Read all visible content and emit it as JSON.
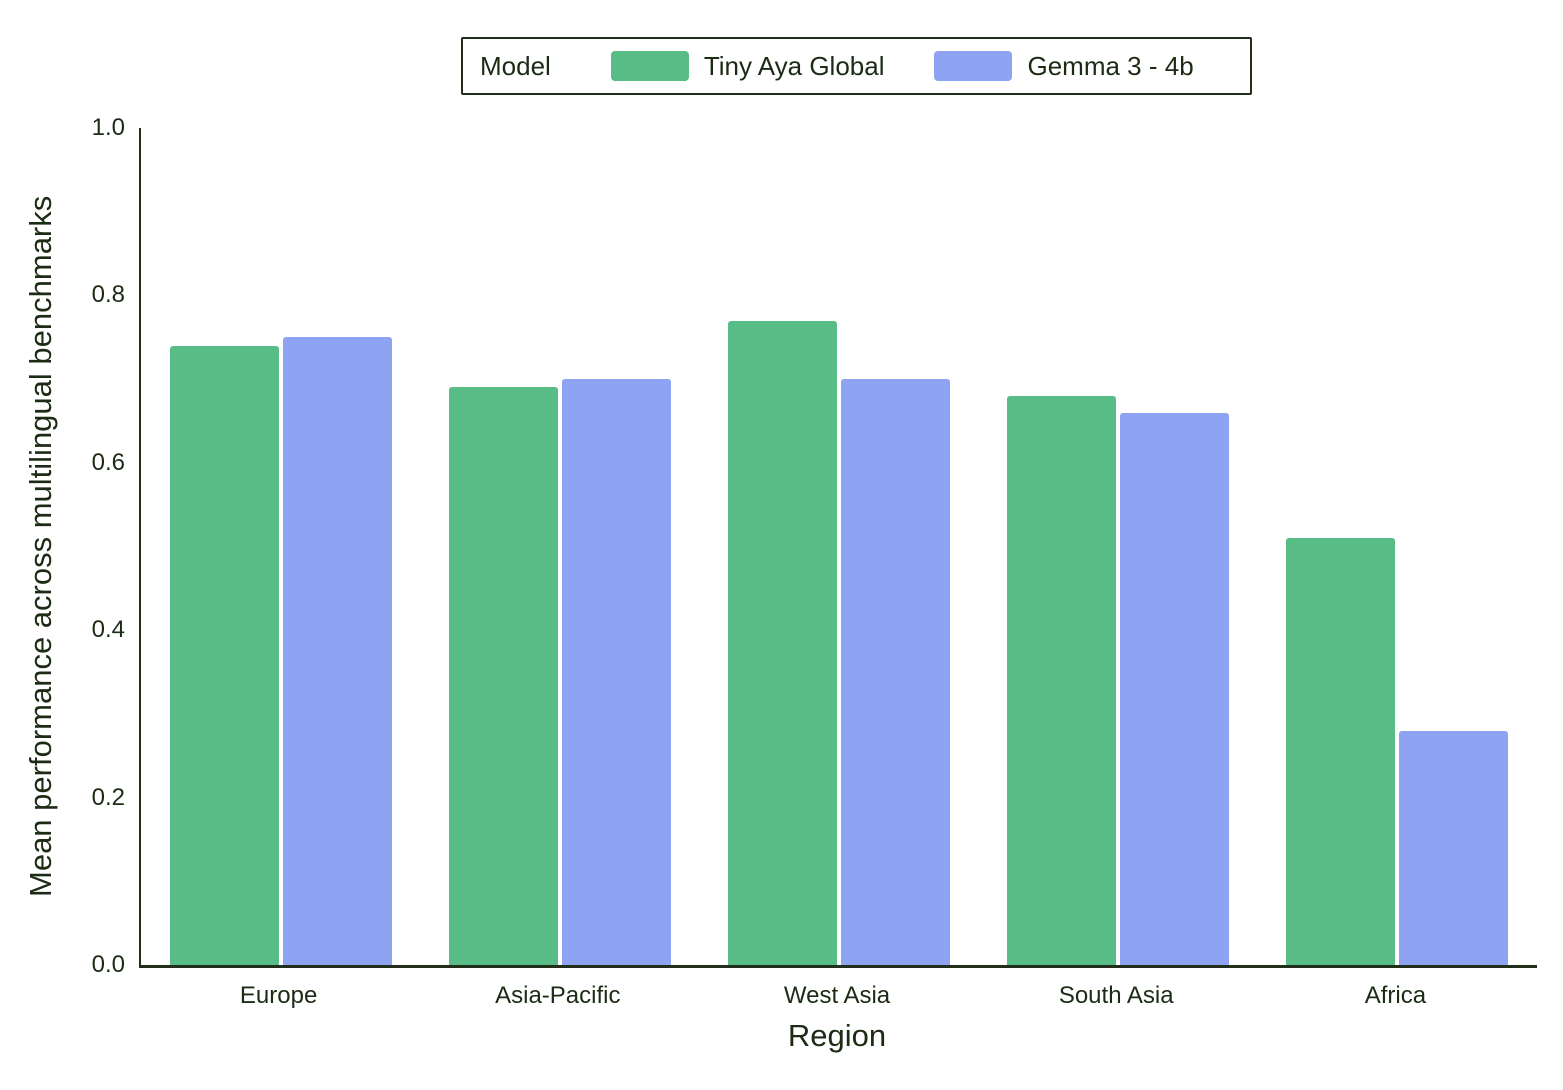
{
  "chart_data": {
    "type": "bar",
    "title": "",
    "categories": [
      "Europe",
      "Asia-Pacific",
      "West Asia",
      "South Asia",
      "Africa"
    ],
    "series": [
      {
        "name": "Tiny Aya Global",
        "color": "#57BC85",
        "values": [
          0.74,
          0.69,
          0.77,
          0.68,
          0.51
        ]
      },
      {
        "name": "Gemma 3 - 4b",
        "color": "#8EA3F2",
        "values": [
          0.75,
          0.7,
          0.7,
          0.66,
          0.28
        ]
      }
    ],
    "xlabel": "Region",
    "ylabel": "Mean performance across multilingual benchmarks",
    "ylim": [
      0.0,
      1.0
    ],
    "yticks": [
      0.0,
      0.2,
      0.4,
      0.6,
      0.8,
      1.0
    ],
    "ytick_labels": [
      "0.0",
      "0.2",
      "0.4",
      "0.6",
      "0.8",
      "1.0"
    ],
    "grid": false,
    "legend_title": "Model",
    "legend_position": "top-center"
  },
  "colors": {
    "background": "#FFFFFF",
    "text": "#1C2B14",
    "axis": "#222E1C",
    "series_green": "#57BC85",
    "series_blue": "#8EA3F2"
  }
}
